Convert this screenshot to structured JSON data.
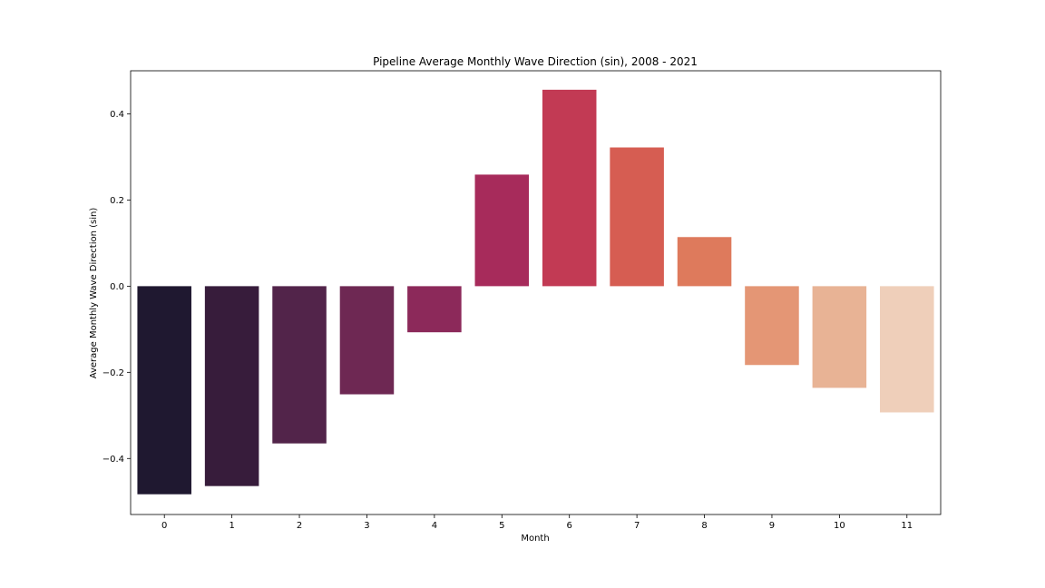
{
  "chart_data": {
    "type": "bar",
    "title": "Pipeline Average Monthly Wave Direction (sin), 2008 - 2021",
    "xlabel": "Month",
    "ylabel": "Average Monthly Wave Direction (sin)",
    "categories": [
      "0",
      "1",
      "2",
      "3",
      "4",
      "5",
      "6",
      "7",
      "8",
      "9",
      "10",
      "11"
    ],
    "values": [
      -0.483,
      -0.464,
      -0.365,
      -0.251,
      -0.107,
      0.259,
      0.456,
      0.322,
      0.114,
      -0.183,
      -0.236,
      -0.293
    ],
    "colors": [
      "#1f1830",
      "#371c3b",
      "#52244a",
      "#6e2853",
      "#8c295a",
      "#a72b5b",
      "#c23a54",
      "#d65d52",
      "#de7a5c",
      "#e49675",
      "#e8b395",
      "#efcfba"
    ],
    "ylim": [
      -0.53,
      0.5
    ],
    "yticks": [
      -0.4,
      -0.2,
      0.0,
      0.2,
      0.4
    ],
    "ytick_labels": [
      "−0.4",
      "−0.2",
      "0.0",
      "0.2",
      "0.4"
    ],
    "grid": false,
    "legend": "none"
  }
}
